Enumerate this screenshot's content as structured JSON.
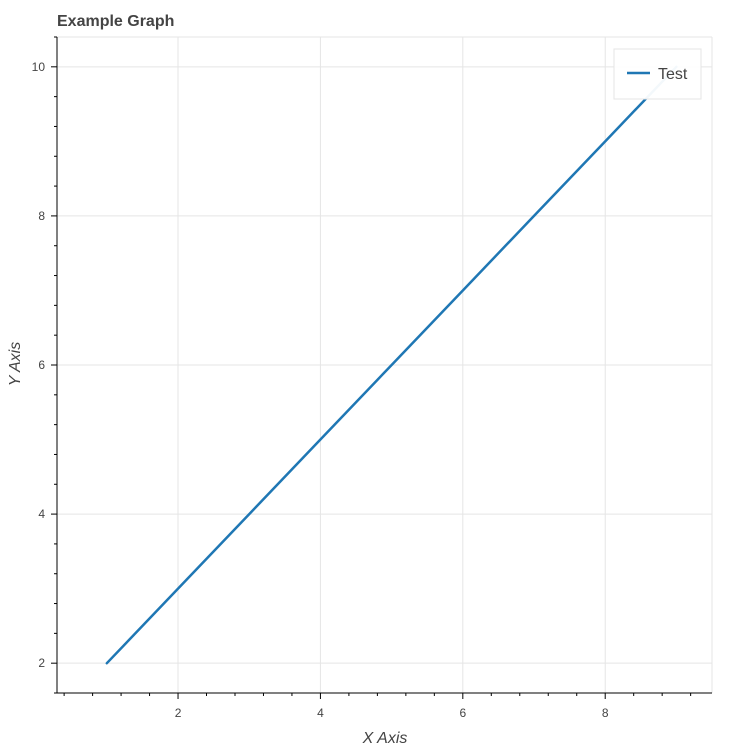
{
  "chart_data": {
    "type": "line",
    "title": "Example Graph",
    "xlabel": "X Axis",
    "ylabel": "Y Axis",
    "xlim": [
      0.3,
      9.5
    ],
    "ylim": [
      1.6,
      10.4
    ],
    "x_ticks": [
      2,
      4,
      6,
      8
    ],
    "y_ticks": [
      2,
      4,
      6,
      8,
      10
    ],
    "grid": true,
    "legend_position": "top-right",
    "series": [
      {
        "name": "Test",
        "color": "#1f77b4",
        "x": [
          1,
          2,
          3,
          4,
          5,
          6,
          7,
          8,
          9
        ],
        "y": [
          2,
          3,
          4,
          5,
          6,
          7,
          8,
          9,
          10
        ]
      }
    ]
  }
}
